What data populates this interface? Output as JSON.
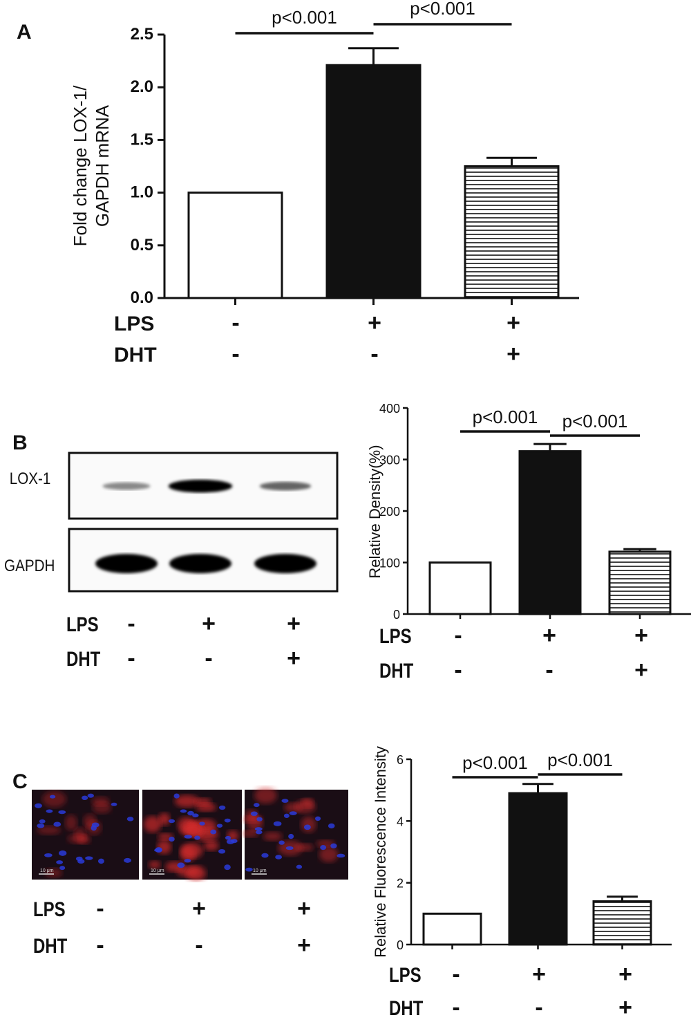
{
  "figure": {
    "panels": [
      {
        "id": "A",
        "letter": "A"
      },
      {
        "id": "B",
        "letter": "B"
      },
      {
        "id": "C",
        "letter": "C"
      }
    ],
    "conditions": {
      "rows": [
        {
          "label": "LPS",
          "values": [
            "-",
            "+",
            "+"
          ]
        },
        {
          "label": "DHT",
          "values": [
            "-",
            "-",
            "+"
          ]
        }
      ]
    },
    "blot": {
      "bands": [
        {
          "label": "LOX-1",
          "intensities": [
            0.25,
            0.9,
            0.4
          ]
        },
        {
          "label": "GAPDH",
          "intensities": [
            1.0,
            1.0,
            0.95
          ]
        }
      ]
    },
    "micrograph": {
      "scale_bar": "10 μm",
      "colors": {
        "nuclei": "#2a3bd8",
        "lox1": "#d2282a",
        "background": "#1a0d15"
      }
    }
  },
  "chart_data": [
    {
      "panel": "A",
      "type": "bar",
      "categories": [
        "LPS- DHT-",
        "LPS+ DHT-",
        "LPS+ DHT+"
      ],
      "values": [
        1.0,
        2.21,
        1.25
      ],
      "errors": [
        0,
        0.16,
        0.08
      ],
      "fills": [
        "white",
        "black",
        "hatched"
      ],
      "ylabel": "Fold change LOX-1/ GAPDH mRNA",
      "ylabel_lines": [
        "Fold change LOX-1/",
        "GAPDH mRNA"
      ],
      "ylim": [
        0,
        2.5
      ],
      "yticks": [
        "0.0",
        "0.5",
        "1.0",
        "1.5",
        "2.0",
        "2.5"
      ],
      "significance": [
        {
          "from": 0,
          "to": 1,
          "label": "p<0.001"
        },
        {
          "from": 1,
          "to": 2,
          "label": "p<0.001"
        }
      ]
    },
    {
      "panel": "B",
      "type": "bar",
      "categories": [
        "LPS- DHT-",
        "LPS+ DHT-",
        "LPS+ DHT+"
      ],
      "values": [
        100,
        316,
        121
      ],
      "errors": [
        0,
        14,
        5
      ],
      "fills": [
        "white",
        "black",
        "hatched"
      ],
      "ylabel": "Relative Density(%)",
      "ylim": [
        0,
        400
      ],
      "yticks": [
        "0",
        "100",
        "200",
        "300",
        "400"
      ],
      "significance": [
        {
          "from": 0,
          "to": 1,
          "label": "p<0.001"
        },
        {
          "from": 1,
          "to": 2,
          "label": "p<0.001"
        }
      ]
    },
    {
      "panel": "C",
      "type": "bar",
      "categories": [
        "LPS- DHT-",
        "LPS+ DHT-",
        "LPS+ DHT+"
      ],
      "values": [
        1.0,
        4.9,
        1.4
      ],
      "errors": [
        0,
        0.3,
        0.15
      ],
      "fills": [
        "white",
        "black",
        "hatched"
      ],
      "ylabel": "Relative Fluorescence Intensity",
      "ylim": [
        0,
        6
      ],
      "yticks": [
        "0",
        "2",
        "4",
        "6"
      ],
      "significance": [
        {
          "from": 0,
          "to": 1,
          "label": "p<0.001"
        },
        {
          "from": 1,
          "to": 2,
          "label": "p<0.001"
        }
      ]
    }
  ]
}
